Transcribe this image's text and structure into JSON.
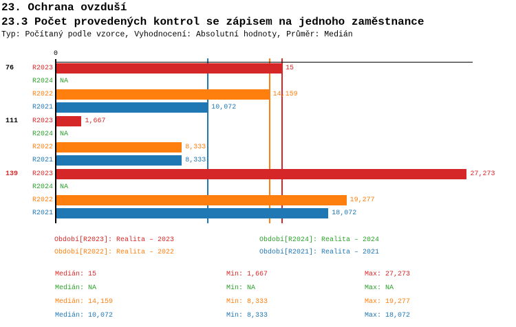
{
  "header": {
    "title1": "23. Ochrana ovzduší",
    "title2": "23.3 Počet provedených kontrol se zápisem na jednoho zaměstnance",
    "meta": "Typ: Počítaný podle vzorce, Vyhodnocení: Absolutní hodnoty, Průměr: Medián"
  },
  "colors": {
    "R2023": "#d62728",
    "R2024": "#2ca02c",
    "R2022": "#ff7f0e",
    "R2021": "#1f77b4",
    "axis": "#000000"
  },
  "chart_data": {
    "type": "bar",
    "orientation": "horizontal",
    "x_axis_zero_label": "0",
    "x_axis_min": 0,
    "x_axis_max": 27.7,
    "grid": "off",
    "value_format": "czech decimal comma",
    "groups": [
      {
        "label": "76",
        "highlight": false,
        "bars": [
          {
            "series": "R2023",
            "value": 15,
            "label": "15"
          },
          {
            "series": "R2024",
            "value": null,
            "label": "NA"
          },
          {
            "series": "R2022",
            "value": 14.159,
            "label": "14,159"
          },
          {
            "series": "R2021",
            "value": 10.072,
            "label": "10,072"
          }
        ]
      },
      {
        "label": "111",
        "highlight": false,
        "bars": [
          {
            "series": "R2023",
            "value": 1.667,
            "label": "1,667"
          },
          {
            "series": "R2024",
            "value": null,
            "label": "NA"
          },
          {
            "series": "R2022",
            "value": 8.333,
            "label": "8,333"
          },
          {
            "series": "R2021",
            "value": 8.333,
            "label": "8,333"
          }
        ]
      },
      {
        "label": "139",
        "highlight": true,
        "bars": [
          {
            "series": "R2023",
            "value": 27.273,
            "label": "27,273"
          },
          {
            "series": "R2024",
            "value": null,
            "label": "NA"
          },
          {
            "series": "R2022",
            "value": 19.277,
            "label": "19,277"
          },
          {
            "series": "R2021",
            "value": 18.072,
            "label": "18,072"
          }
        ]
      }
    ],
    "median_lines": [
      {
        "series": "R2023",
        "value": 15
      },
      {
        "series": "R2022",
        "value": 14.159
      },
      {
        "series": "R2021",
        "value": 10.072
      }
    ]
  },
  "legend": {
    "items": [
      {
        "series": "R2023",
        "text": "Období[R2023]: Realita – 2023"
      },
      {
        "series": "R2024",
        "text": "Období[R2024]: Realita – 2024"
      },
      {
        "series": "R2022",
        "text": "Období[R2022]: Realita – 2022"
      },
      {
        "series": "R2021",
        "text": "Období[R2021]: Realita – 2021"
      }
    ]
  },
  "stats": {
    "rows": [
      {
        "series": "R2023",
        "median": "Medián: 15",
        "min": "Min: 1,667",
        "max": "Max: 27,273"
      },
      {
        "series": "R2024",
        "median": "Medián: NA",
        "min": "Min: NA",
        "max": "Max: NA"
      },
      {
        "series": "R2022",
        "median": "Medián: 14,159",
        "min": "Min: 8,333",
        "max": "Max: 19,277"
      },
      {
        "series": "R2021",
        "median": "Medián: 10,072",
        "min": "Min: 8,333",
        "max": "Max: 18,072"
      }
    ]
  }
}
